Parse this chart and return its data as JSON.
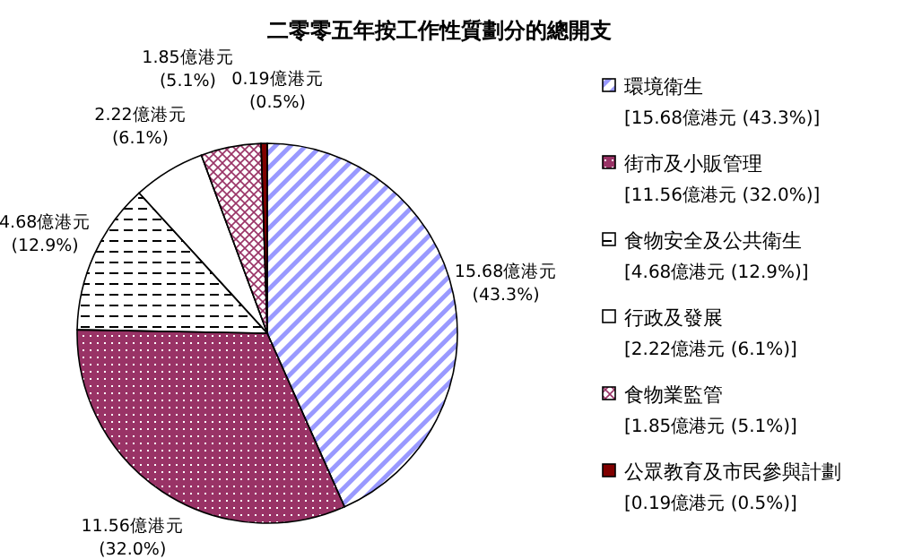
{
  "chart_data": {
    "type": "pie",
    "title": "二零零五年按工作性質劃分的總開支",
    "categories": [
      "環境衛生\n[15.68億港元 (43.3%)]",
      "街市及小販管理\n[11.56億港元 (32.0%)]",
      "食物安全及公共衛生\n[4.68億港元 (12.9%)]",
      "行政及發展\n[2.22億港元 (6.1%)]",
      "食物業監管\n[1.85億港元 (5.1%)]",
      "公眾教育及市民參與計劃\n[0.19億港元 (0.5%)]"
    ],
    "values": [
      15.68,
      11.56,
      4.68,
      2.22,
      1.85,
      0.19
    ],
    "value_labels": [
      "15.68億港元\n(43.3%)",
      "11.56億港元\n(32.0%)",
      "4.68億港元\n(12.9%)",
      "2.22億港元\n(6.1%)",
      "1.85億港元\n(5.1%)",
      "0.19億港元\n(0.5%)"
    ],
    "colors": [
      "#9999ff",
      "#993366",
      "#000000",
      "#ffffff",
      "#993366",
      "#800000"
    ],
    "legend": "right"
  }
}
